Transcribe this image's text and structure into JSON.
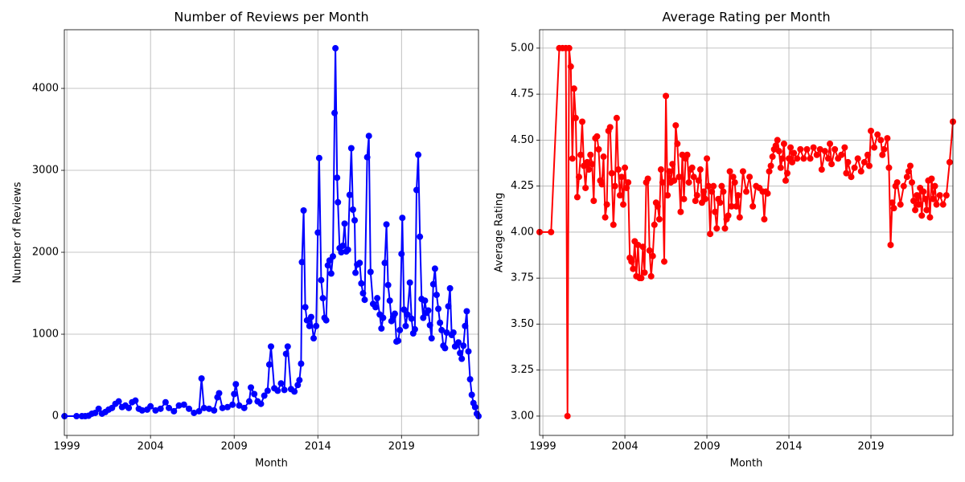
{
  "chart_data": [
    {
      "type": "line",
      "title": "Number of Reviews per Month",
      "x_label": "Month",
      "y_label": "Number of Reviews",
      "color": "#0000ff",
      "grid": true,
      "xlim": [
        1998.85,
        2023.6
      ],
      "xticks": [
        1999,
        2004,
        2009,
        2014,
        2019
      ],
      "ylim": [
        -235,
        4716
      ],
      "yticks": [
        0,
        1000,
        2000,
        3000,
        4000
      ],
      "x": [
        1998.86,
        1999.58,
        1999.9,
        2000.1,
        2000.3,
        2000.5,
        2000.7,
        2000.9,
        2001.1,
        2001.3,
        2001.5,
        2001.7,
        2001.9,
        2002.1,
        2002.3,
        2002.5,
        2002.7,
        2002.9,
        2003.1,
        2003.3,
        2003.5,
        2003.8,
        2004.0,
        2004.3,
        2004.6,
        2004.9,
        2005.1,
        2005.4,
        2005.7,
        2006.0,
        2006.3,
        2006.6,
        2006.9,
        2007.05,
        2007.2,
        2007.5,
        2007.8,
        2008.0,
        2008.1,
        2008.3,
        2008.6,
        2008.9,
        2009.0,
        2009.1,
        2009.3,
        2009.6,
        2009.9,
        2010.0,
        2010.2,
        2010.4,
        2010.6,
        2010.8,
        2011.0,
        2011.1,
        2011.2,
        2011.4,
        2011.6,
        2011.8,
        2012.0,
        2012.1,
        2012.2,
        2012.4,
        2012.6,
        2012.8,
        2012.9,
        2013.0,
        2013.05,
        2013.15,
        2013.25,
        2013.35,
        2013.5,
        2013.6,
        2013.75,
        2013.9,
        2014.0,
        2014.08,
        2014.2,
        2014.3,
        2014.4,
        2014.5,
        2014.6,
        2014.7,
        2014.8,
        2014.9,
        2015.0,
        2015.05,
        2015.15,
        2015.2,
        2015.3,
        2015.4,
        2015.5,
        2015.6,
        2015.7,
        2015.8,
        2015.9,
        2016.0,
        2016.1,
        2016.2,
        2016.25,
        2016.35,
        2016.5,
        2016.6,
        2016.7,
        2016.8,
        2016.95,
        2017.05,
        2017.15,
        2017.3,
        2017.45,
        2017.55,
        2017.7,
        2017.8,
        2017.9,
        2018.0,
        2018.1,
        2018.2,
        2018.3,
        2018.4,
        2018.5,
        2018.6,
        2018.7,
        2018.8,
        2018.9,
        2019.0,
        2019.05,
        2019.15,
        2019.25,
        2019.35,
        2019.5,
        2019.6,
        2019.7,
        2019.8,
        2019.9,
        2020.0,
        2020.1,
        2020.2,
        2020.3,
        2020.4,
        2020.5,
        2020.6,
        2020.7,
        2020.8,
        2020.9,
        2021.0,
        2021.1,
        2021.2,
        2021.3,
        2021.4,
        2021.5,
        2021.6,
        2021.7,
        2021.8,
        2021.9,
        2022.0,
        2022.1,
        2022.2,
        2022.3,
        2022.4,
        2022.5,
        2022.6,
        2022.7,
        2022.8,
        2022.9,
        2023.0,
        2023.1,
        2023.2,
        2023.3,
        2023.4,
        2023.5,
        2023.6
      ],
      "values": [
        0,
        0,
        0,
        0,
        5,
        30,
        40,
        90,
        30,
        50,
        80,
        100,
        150,
        180,
        110,
        130,
        100,
        170,
        190,
        90,
        70,
        80,
        120,
        70,
        90,
        170,
        100,
        60,
        130,
        140,
        90,
        40,
        60,
        460,
        100,
        90,
        70,
        230,
        280,
        100,
        110,
        140,
        270,
        390,
        130,
        100,
        180,
        350,
        270,
        180,
        150,
        250,
        310,
        630,
        850,
        340,
        310,
        400,
        320,
        760,
        850,
        330,
        300,
        380,
        440,
        640,
        1880,
        2510,
        1330,
        1170,
        1100,
        1210,
        950,
        1100,
        2240,
        3150,
        1660,
        1440,
        1200,
        1170,
        1840,
        1900,
        1740,
        1950,
        3700,
        4490,
        2910,
        2610,
        2050,
        2000,
        2080,
        2350,
        2010,
        2030,
        2700,
        3270,
        2520,
        2390,
        1750,
        1850,
        1870,
        1620,
        1500,
        1420,
        3160,
        3420,
        1760,
        1370,
        1330,
        1440,
        1240,
        1070,
        1200,
        1870,
        2340,
        1600,
        1410,
        1160,
        1210,
        1250,
        910,
        920,
        1050,
        1980,
        2420,
        1300,
        1100,
        1240,
        1630,
        1190,
        1010,
        1060,
        2760,
        3190,
        2190,
        1430,
        1200,
        1410,
        1260,
        1290,
        1110,
        950,
        1610,
        1800,
        1480,
        1310,
        1140,
        1050,
        860,
        830,
        1020,
        1340,
        1560,
        990,
        1020,
        850,
        870,
        900,
        770,
        700,
        860,
        1100,
        1280,
        790,
        450,
        260,
        160,
        110,
        30,
        0
      ]
    },
    {
      "type": "line",
      "title": "Average Rating per Month",
      "x_label": "Month",
      "y_label": "Average Rating",
      "color": "#ff0000",
      "grid": true,
      "xlim": [
        1998.8,
        2024.0
      ],
      "xticks": [
        1999,
        2004,
        2009,
        2014,
        2019
      ],
      "ylim": [
        2.895,
        5.1
      ],
      "yticks": [
        {
          "value": 3,
          "label": "3.00"
        },
        {
          "value": 3.25,
          "label": "3.25"
        },
        {
          "value": 3.5,
          "label": "3.50"
        },
        {
          "value": 3.75,
          "label": "3.75"
        },
        {
          "value": 4,
          "label": "4.00"
        },
        {
          "value": 4.25,
          "label": "4.25"
        },
        {
          "value": 4.5,
          "label": "4.50"
        },
        {
          "value": 4.75,
          "label": "4.75"
        },
        {
          "value": 5,
          "label": "5.00"
        }
      ],
      "x": [
        1998.8,
        1999.5,
        2000.0,
        2000.2,
        2000.4,
        2000.5,
        2000.6,
        2000.7,
        2000.8,
        2000.9,
        2001.0,
        2001.1,
        2001.2,
        2001.3,
        2001.4,
        2001.5,
        2001.6,
        2001.7,
        2001.8,
        2001.9,
        2002.0,
        2002.1,
        2002.2,
        2002.3,
        2002.4,
        2002.5,
        2002.6,
        2002.7,
        2002.8,
        2002.9,
        2003.0,
        2003.1,
        2003.2,
        2003.3,
        2003.4,
        2003.5,
        2003.6,
        2003.7,
        2003.8,
        2003.9,
        2004.0,
        2004.1,
        2004.2,
        2004.3,
        2004.4,
        2004.5,
        2004.6,
        2004.7,
        2004.8,
        2004.9,
        2005.0,
        2005.1,
        2005.2,
        2005.3,
        2005.4,
        2005.5,
        2005.6,
        2005.7,
        2005.8,
        2005.9,
        2006.0,
        2006.1,
        2006.2,
        2006.3,
        2006.4,
        2006.5,
        2006.6,
        2006.7,
        2006.8,
        2006.9,
        2007.0,
        2007.1,
        2007.2,
        2007.3,
        2007.4,
        2007.5,
        2007.6,
        2007.7,
        2007.8,
        2007.9,
        2008.0,
        2008.1,
        2008.2,
        2008.3,
        2008.4,
        2008.5,
        2008.6,
        2008.7,
        2008.8,
        2008.9,
        2009.0,
        2009.1,
        2009.2,
        2009.3,
        2009.4,
        2009.5,
        2009.6,
        2009.7,
        2009.8,
        2009.9,
        2010.0,
        2010.1,
        2010.2,
        2010.3,
        2010.4,
        2010.5,
        2010.6,
        2010.7,
        2010.8,
        2010.9,
        2011.0,
        2011.2,
        2011.4,
        2011.6,
        2011.8,
        2012.0,
        2012.2,
        2012.4,
        2012.5,
        2012.6,
        2012.7,
        2012.8,
        2012.9,
        2013.0,
        2013.1,
        2013.2,
        2013.3,
        2013.4,
        2013.5,
        2013.6,
        2013.7,
        2013.8,
        2013.9,
        2014.0,
        2014.1,
        2014.2,
        2014.3,
        2014.5,
        2014.7,
        2014.9,
        2015.1,
        2015.3,
        2015.5,
        2015.7,
        2015.9,
        2016.0,
        2016.2,
        2016.4,
        2016.5,
        2016.6,
        2016.8,
        2017.0,
        2017.2,
        2017.4,
        2017.5,
        2017.6,
        2017.8,
        2018.0,
        2018.2,
        2018.4,
        2018.6,
        2018.8,
        2018.9,
        2019.0,
        2019.2,
        2019.4,
        2019.6,
        2019.7,
        2019.8,
        2020.0,
        2020.1,
        2020.2,
        2020.3,
        2020.4,
        2020.5,
        2020.6,
        2020.8,
        2021.0,
        2021.2,
        2021.3,
        2021.4,
        2021.5,
        2021.6,
        2021.7,
        2021.8,
        2021.9,
        2022.0,
        2022.1,
        2022.2,
        2022.3,
        2022.4,
        2022.5,
        2022.6,
        2022.7,
        2022.8,
        2022.9,
        2023.0,
        2023.2,
        2023.4,
        2023.6,
        2023.8,
        2024.0
      ],
      "values": [
        4.0,
        4.0,
        5.0,
        5.0,
        5.0,
        3.0,
        5.0,
        4.9,
        4.4,
        4.78,
        4.62,
        4.19,
        4.3,
        4.42,
        4.6,
        4.36,
        4.24,
        4.38,
        4.34,
        4.42,
        4.37,
        4.17,
        4.51,
        4.52,
        4.45,
        4.28,
        4.26,
        4.41,
        4.08,
        4.15,
        4.55,
        4.57,
        4.32,
        4.04,
        4.25,
        4.62,
        4.34,
        4.2,
        4.3,
        4.15,
        4.35,
        4.24,
        4.27,
        3.86,
        3.84,
        3.8,
        3.95,
        3.76,
        3.93,
        3.75,
        3.75,
        3.92,
        3.78,
        4.27,
        4.29,
        3.9,
        3.76,
        3.87,
        4.04,
        4.16,
        4.14,
        4.07,
        4.34,
        4.27,
        3.84,
        4.74,
        4.2,
        4.33,
        4.27,
        4.37,
        4.28,
        4.58,
        4.48,
        4.3,
        4.11,
        4.42,
        4.18,
        4.4,
        4.42,
        4.27,
        4.34,
        4.35,
        4.3,
        4.17,
        4.2,
        4.28,
        4.34,
        4.16,
        4.22,
        4.18,
        4.4,
        4.25,
        3.99,
        4.22,
        4.25,
        4.11,
        4.02,
        4.18,
        4.16,
        4.25,
        4.22,
        4.02,
        4.07,
        4.09,
        4.33,
        4.14,
        4.3,
        4.27,
        4.14,
        4.2,
        4.08,
        4.33,
        4.22,
        4.3,
        4.14,
        4.25,
        4.24,
        4.22,
        4.07,
        4.22,
        4.21,
        4.33,
        4.36,
        4.41,
        4.45,
        4.47,
        4.5,
        4.44,
        4.35,
        4.4,
        4.48,
        4.28,
        4.32,
        4.4,
        4.46,
        4.38,
        4.43,
        4.4,
        4.45,
        4.4,
        4.45,
        4.4,
        4.46,
        4.42,
        4.45,
        4.34,
        4.44,
        4.4,
        4.48,
        4.37,
        4.45,
        4.4,
        4.42,
        4.46,
        4.32,
        4.38,
        4.3,
        4.35,
        4.4,
        4.33,
        4.38,
        4.42,
        4.36,
        4.55,
        4.46,
        4.53,
        4.5,
        4.42,
        4.45,
        4.51,
        4.35,
        3.93,
        4.16,
        4.13,
        4.25,
        4.27,
        4.15,
        4.25,
        4.3,
        4.33,
        4.36,
        4.27,
        4.17,
        4.12,
        4.2,
        4.15,
        4.24,
        4.09,
        4.22,
        4.18,
        4.12,
        4.28,
        4.08,
        4.29,
        4.18,
        4.25,
        4.15,
        4.2,
        4.15,
        4.2,
        4.38,
        4.6
      ]
    }
  ]
}
